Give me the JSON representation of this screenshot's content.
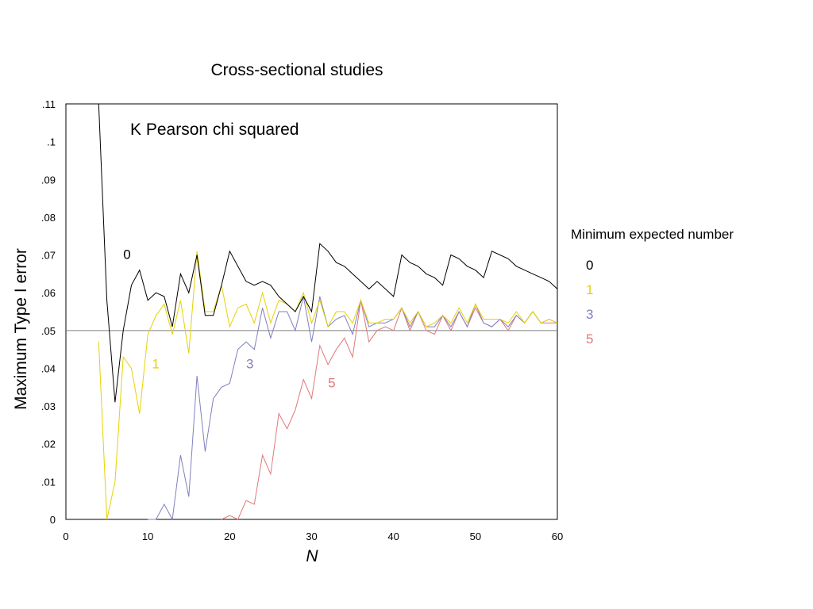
{
  "chart_data": {
    "type": "line",
    "title": "Cross-sectional studies",
    "annotation": "K Pearson chi squared",
    "xlabel": "N",
    "ylabel": "Maximum Type I error",
    "xlim": [
      0,
      60
    ],
    "ylim": [
      0,
      0.11
    ],
    "xticks": [
      0,
      10,
      20,
      30,
      40,
      50,
      60
    ],
    "xtick_labels": [
      "0",
      "10",
      "20",
      "30",
      "40",
      "50",
      "60"
    ],
    "yticks": [
      0,
      0.01,
      0.02,
      0.03,
      0.04,
      0.05,
      0.06,
      0.07,
      0.08,
      0.09,
      0.1,
      0.11
    ],
    "ytick_labels": [
      "0",
      ".01",
      ".02",
      ".03",
      ".04",
      ".05",
      ".06",
      ".07",
      ".08",
      ".09",
      ".1",
      ".11"
    ],
    "reference_line": 0.05,
    "grid": false,
    "legend_title": "Minimum expected number",
    "legend_position": "right",
    "series": [
      {
        "name": "0",
        "color": "#000000",
        "label_at": [
          7,
          0.069
        ],
        "x": [
          4,
          5,
          6,
          7,
          8,
          9,
          10,
          11,
          12,
          13,
          14,
          15,
          16,
          17,
          18,
          19,
          20,
          21,
          22,
          23,
          24,
          25,
          26,
          27,
          28,
          29,
          30,
          31,
          32,
          33,
          34,
          35,
          36,
          37,
          38,
          39,
          40,
          41,
          42,
          43,
          44,
          45,
          46,
          47,
          48,
          49,
          50,
          51,
          52,
          53,
          54,
          55,
          56,
          57,
          58,
          59,
          60
        ],
        "y": [
          0.11,
          0.058,
          0.031,
          0.05,
          0.062,
          0.066,
          0.058,
          0.06,
          0.059,
          0.051,
          0.065,
          0.06,
          0.07,
          0.054,
          0.054,
          0.062,
          0.071,
          0.067,
          0.063,
          0.062,
          0.063,
          0.062,
          0.059,
          0.057,
          0.055,
          0.059,
          0.055,
          0.073,
          0.071,
          0.068,
          0.067,
          0.065,
          0.063,
          0.061,
          0.063,
          0.061,
          0.059,
          0.07,
          0.068,
          0.067,
          0.065,
          0.064,
          0.062,
          0.07,
          0.069,
          0.067,
          0.066,
          0.064,
          0.071,
          0.07,
          0.069,
          0.067,
          0.066,
          0.065,
          0.064,
          0.063,
          0.061
        ]
      },
      {
        "name": "1",
        "color": "#e6d200",
        "label_at": [
          10.5,
          0.04
        ],
        "x": [
          4,
          5,
          6,
          7,
          8,
          9,
          10,
          11,
          12,
          13,
          14,
          15,
          16,
          17,
          18,
          19,
          20,
          21,
          22,
          23,
          24,
          25,
          26,
          27,
          28,
          29,
          30,
          31,
          32,
          33,
          34,
          35,
          36,
          37,
          38,
          39,
          40,
          41,
          42,
          43,
          44,
          45,
          46,
          47,
          48,
          49,
          50,
          51,
          52,
          53,
          54,
          55,
          56,
          57,
          58,
          59,
          60
        ],
        "y": [
          0.047,
          0.0,
          0.01,
          0.043,
          0.04,
          0.028,
          0.049,
          0.054,
          0.057,
          0.049,
          0.058,
          0.044,
          0.071,
          0.055,
          0.055,
          0.062,
          0.051,
          0.056,
          0.057,
          0.052,
          0.06,
          0.052,
          0.058,
          0.057,
          0.055,
          0.06,
          0.052,
          0.058,
          0.051,
          0.055,
          0.055,
          0.052,
          0.058,
          0.052,
          0.052,
          0.053,
          0.053,
          0.056,
          0.052,
          0.055,
          0.051,
          0.052,
          0.054,
          0.052,
          0.056,
          0.052,
          0.057,
          0.053,
          0.053,
          0.053,
          0.052,
          0.055,
          0.052,
          0.055,
          0.052,
          0.053,
          0.052
        ]
      },
      {
        "name": "3",
        "color": "#8080c0",
        "label_at": [
          22,
          0.04
        ],
        "x": [
          10,
          11,
          12,
          13,
          14,
          15,
          16,
          17,
          18,
          19,
          20,
          21,
          22,
          23,
          24,
          25,
          26,
          27,
          28,
          29,
          30,
          31,
          32,
          33,
          34,
          35,
          36,
          37,
          38,
          39,
          40,
          41,
          42,
          43,
          44,
          45,
          46,
          47,
          48,
          49,
          50,
          51,
          52,
          53,
          54,
          55,
          56,
          57,
          58,
          59,
          60
        ],
        "y": [
          0.0,
          0.0,
          0.004,
          0.0,
          0.017,
          0.006,
          0.038,
          0.018,
          0.032,
          0.035,
          0.036,
          0.045,
          0.047,
          0.045,
          0.056,
          0.048,
          0.055,
          0.055,
          0.05,
          0.059,
          0.047,
          0.059,
          0.051,
          0.053,
          0.054,
          0.049,
          0.058,
          0.051,
          0.052,
          0.052,
          0.053,
          0.056,
          0.051,
          0.055,
          0.051,
          0.051,
          0.054,
          0.051,
          0.055,
          0.051,
          0.057,
          0.052,
          0.051,
          0.053,
          0.051,
          0.054,
          0.052,
          0.055,
          0.052,
          0.053,
          0.052
        ]
      },
      {
        "name": "5",
        "color": "#e07878",
        "label_at": [
          32,
          0.035
        ],
        "x": [
          19,
          20,
          21,
          22,
          23,
          24,
          25,
          26,
          27,
          28,
          29,
          30,
          31,
          32,
          33,
          34,
          35,
          36,
          37,
          38,
          39,
          40,
          41,
          42,
          43,
          44,
          45,
          46,
          47,
          48,
          49,
          50,
          51,
          52,
          53,
          54,
          55,
          56,
          57,
          58,
          59,
          60
        ],
        "y": [
          0.0,
          0.001,
          0.0,
          0.005,
          0.004,
          0.017,
          0.012,
          0.028,
          0.024,
          0.029,
          0.037,
          0.032,
          0.046,
          0.041,
          0.045,
          0.048,
          0.043,
          0.058,
          0.047,
          0.05,
          0.051,
          0.05,
          0.056,
          0.05,
          0.055,
          0.05,
          0.049,
          0.054,
          0.05,
          0.055,
          0.051,
          0.056,
          0.052,
          0.051,
          0.053,
          0.05,
          0.054,
          0.052,
          0.055,
          0.052,
          0.052,
          0.052
        ]
      }
    ]
  }
}
